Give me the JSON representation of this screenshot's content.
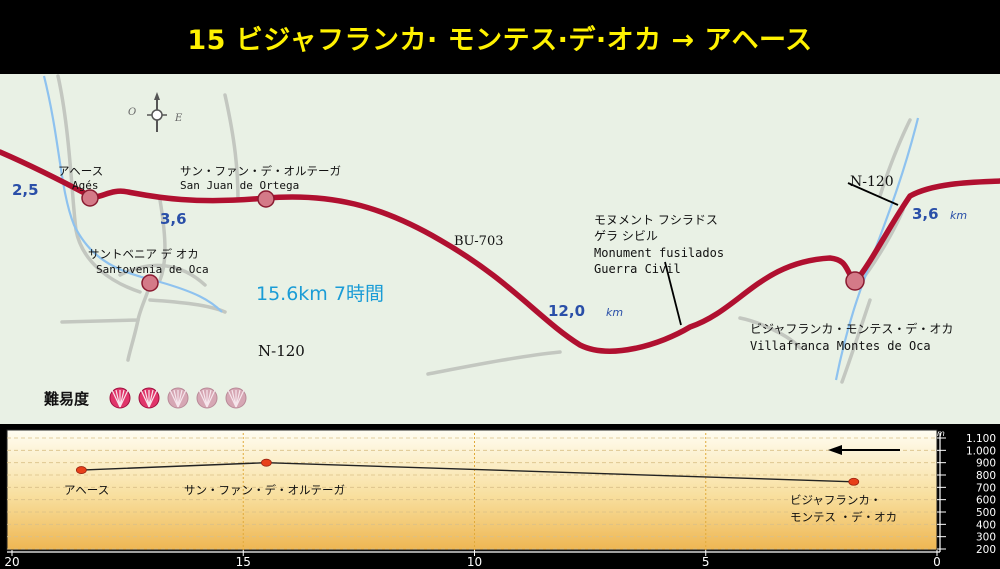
{
  "title": "15 ビジャフランカ· モンテス·デ·オカ → アヘース",
  "compass": {
    "west": "O",
    "east": "E"
  },
  "map": {
    "places": [
      {
        "jp": "アヘース",
        "es": "Agés"
      },
      {
        "jp": "サン・ファン・デ・オルテーガ",
        "es": "San Juan de Ortega"
      },
      {
        "jp": "サントベニア デ オカ",
        "es": "Santovenia de Oca"
      },
      {
        "jp": "ビジャフランカ・モンテス・デ・オカ",
        "es": "Villafranca Montes de Oca"
      }
    ],
    "monument": {
      "jp1": "モヌメント フシラドス",
      "jp2": "ゲラ シビル",
      "es1": "Monument fusilados",
      "es2": "Guerra Civil"
    },
    "roads": {
      "bu703": "BU-703",
      "n120_west": "N-120",
      "n120_east": "N-120"
    },
    "segments": [
      {
        "value": "2,5",
        "unit": ""
      },
      {
        "value": "3,6",
        "unit": ""
      },
      {
        "value": "12,0",
        "unit": "km"
      },
      {
        "value": "3,6",
        "unit": "km"
      }
    ],
    "summary": "15.6km 7時間",
    "difficulty": {
      "label": "難易度",
      "level": 2,
      "max": 5
    },
    "colors": {
      "route": "#b01030",
      "segment_text": "#2a4fa8",
      "summary_text": "#1a9cd6",
      "map_bg": "#e9f1e5",
      "river": "#7ab6ea"
    }
  },
  "profile": {
    "y_unit": "m",
    "y_ticks": [
      "1.100",
      "1.000",
      "900",
      "800",
      "700",
      "600",
      "500",
      "400",
      "300",
      "200"
    ],
    "x_ticks": [
      "20",
      "15",
      "10",
      "5",
      "0"
    ],
    "labels": {
      "ages": "アヘース",
      "sanjuan": "サン・ファン・デ・オルテーガ",
      "villa1": "ビジャフランカ・",
      "villa2": "モンテス ・デ・オカ"
    }
  },
  "chart_data": {
    "type": "line",
    "title": "",
    "xlabel": "",
    "ylabel": "m",
    "x_direction": "descending",
    "xlim": [
      20,
      0
    ],
    "ylim": [
      200,
      1100
    ],
    "x": [
      18.5,
      14.5,
      1.8
    ],
    "series": [
      {
        "values": [
          840,
          900,
          745
        ]
      }
    ],
    "point_labels": [
      "アヘース",
      "サン・ファン・デ・オルテーガ",
      "ビジャフランカ・モンテス ・デ・オカ"
    ],
    "grid": true
  }
}
